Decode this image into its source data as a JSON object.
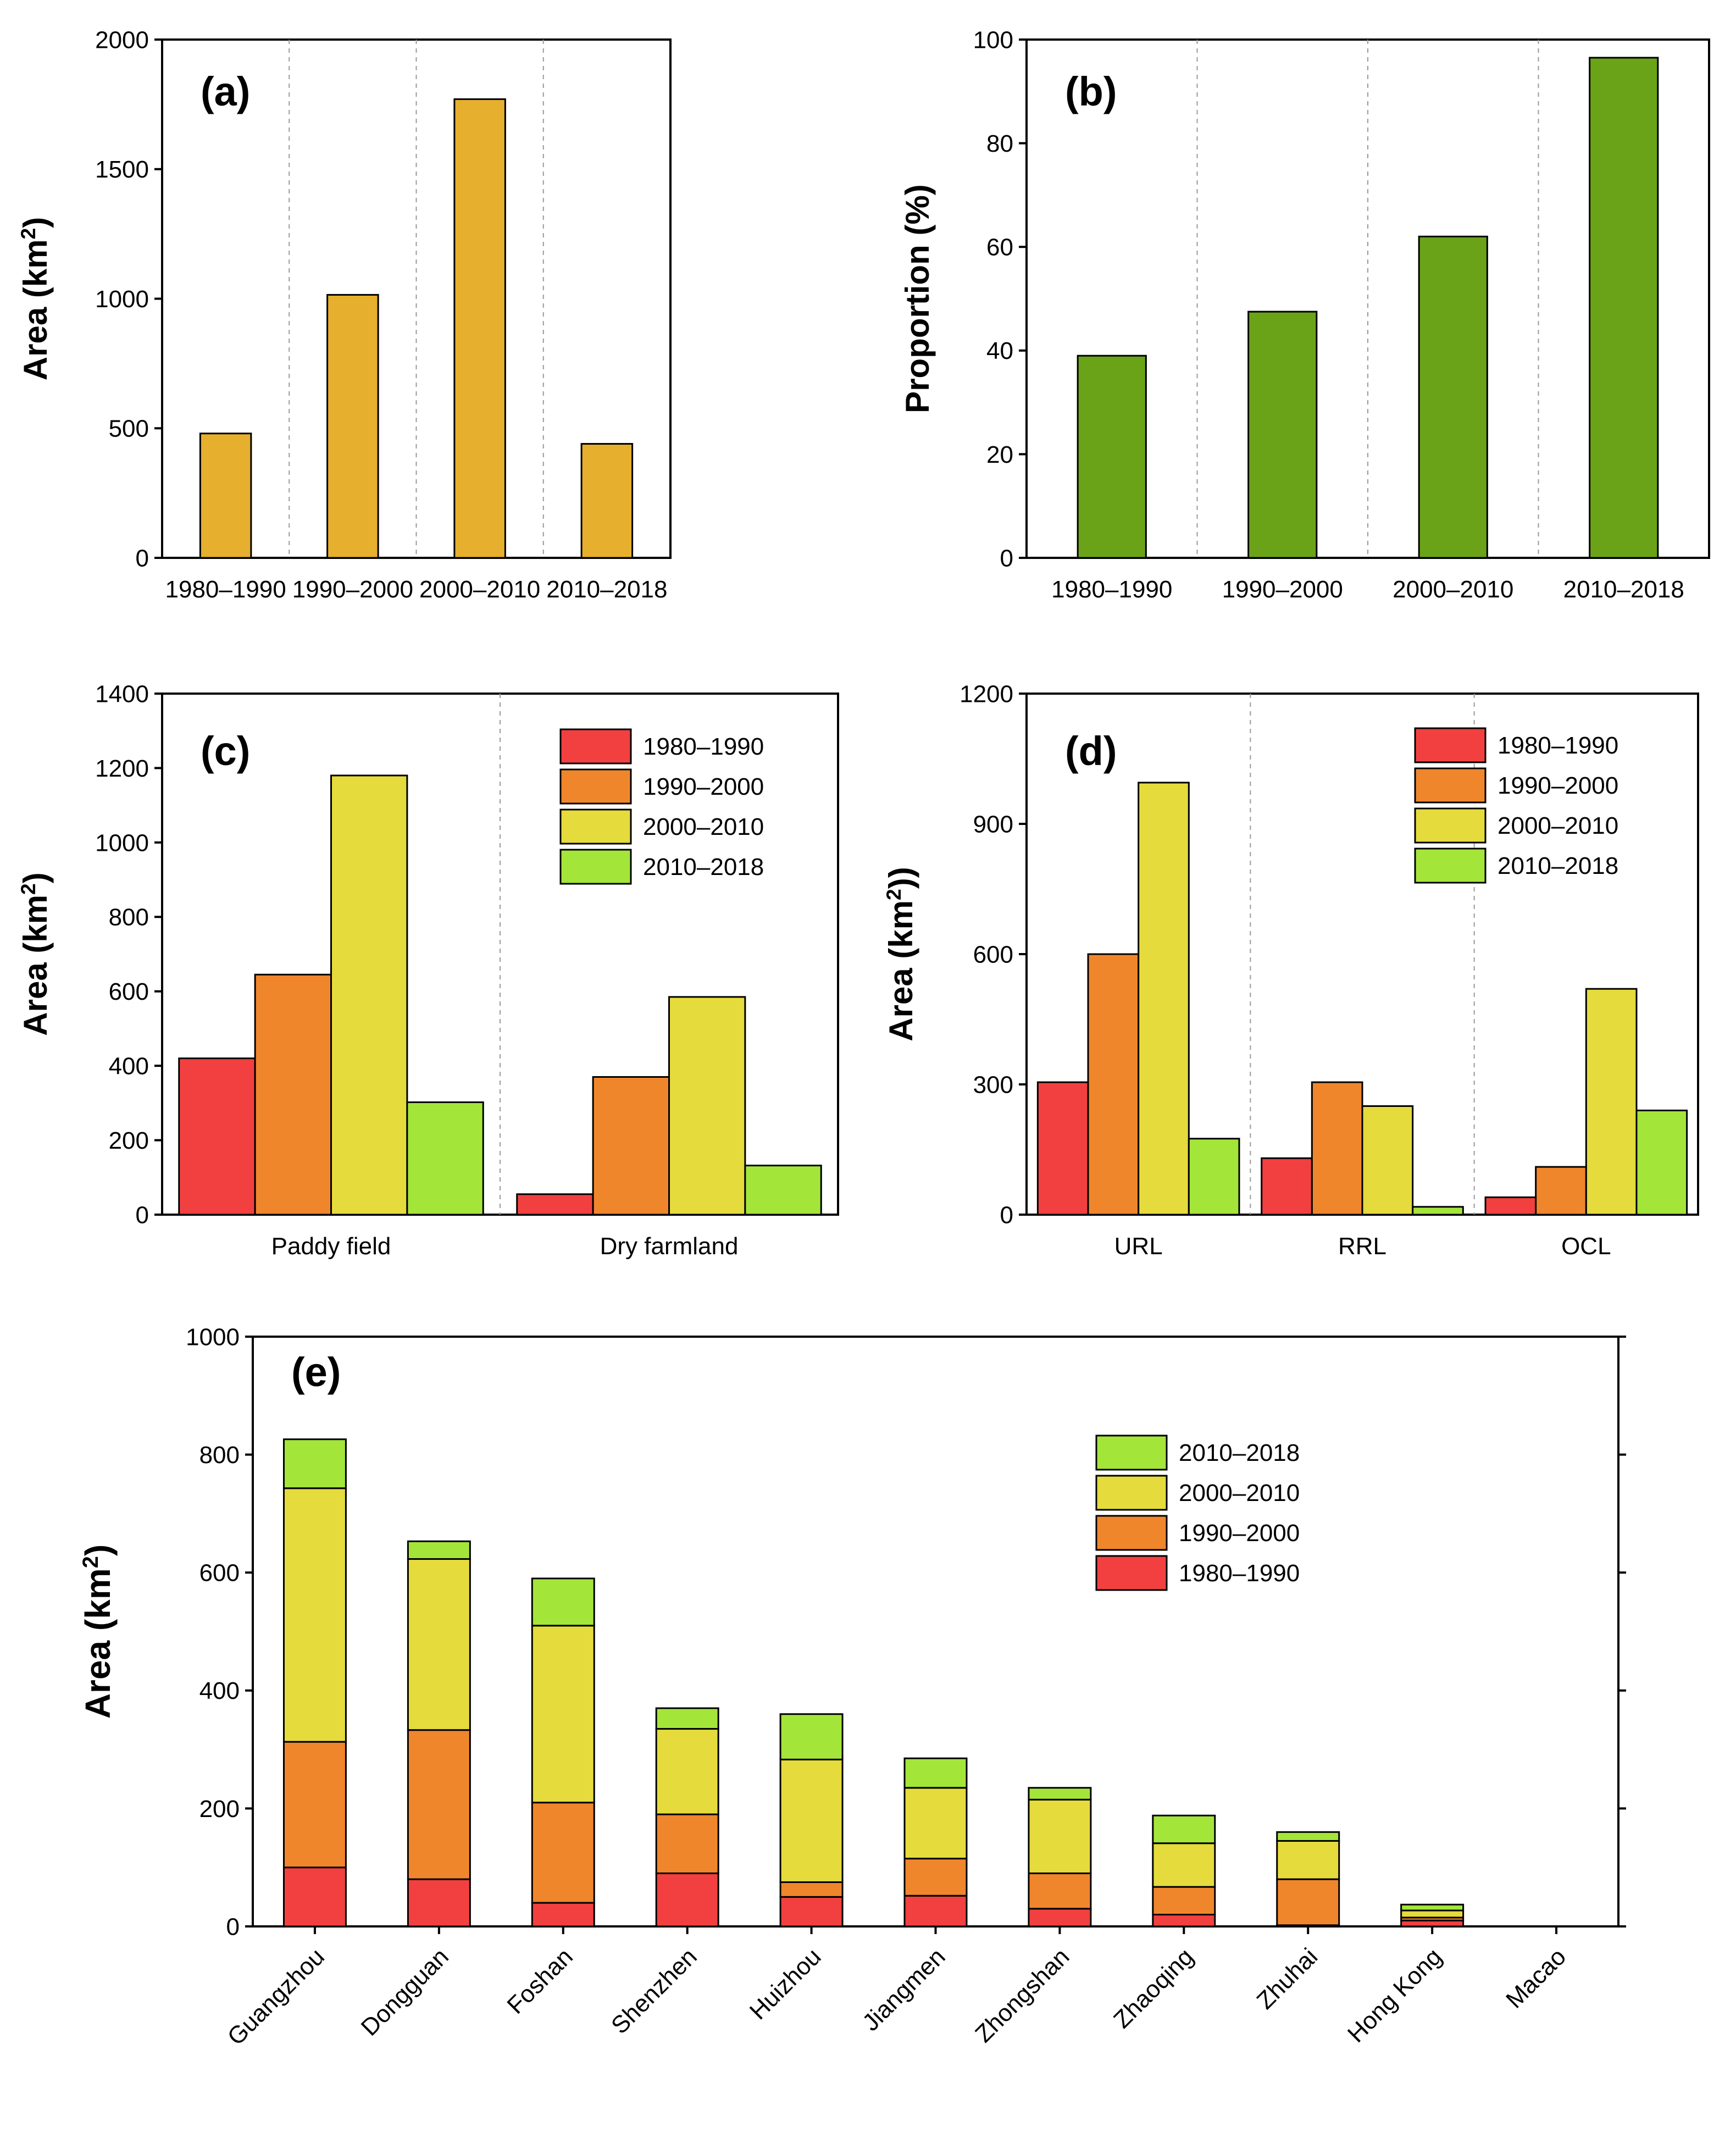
{
  "figure": {
    "description": "Five-panel bar chart figure"
  },
  "chart_data": [
    {
      "id": "a",
      "panel_label": "(a)",
      "type": "bar",
      "title": "",
      "xlabel": "",
      "ylabel": "Area (km²)",
      "ylabel_main": "Area (km",
      "ylabel_sup": "2",
      "ylabel_tail": ")",
      "ylim": [
        0,
        2000
      ],
      "yticks": [
        0,
        500,
        1000,
        1500,
        2000
      ],
      "grid": "vertical dashed separators between categories",
      "categories": [
        "1980–1990",
        "1990–2000",
        "2000–2010",
        "2010–2018"
      ],
      "values": [
        480,
        1015,
        1770,
        440
      ],
      "color": "#E6AF2E"
    },
    {
      "id": "b",
      "panel_label": "(b)",
      "type": "bar",
      "title": "",
      "xlabel": "",
      "ylabel": "Proportion (%)",
      "ylim": [
        0,
        100
      ],
      "yticks": [
        0,
        20,
        40,
        60,
        80,
        100
      ],
      "grid": "vertical dashed separators between categories",
      "categories": [
        "1980–1990",
        "1990–2000",
        "2000–2010",
        "2010–2018"
      ],
      "values": [
        39,
        47.5,
        62,
        96.5
      ],
      "color": "#6AA318"
    },
    {
      "id": "c",
      "panel_label": "(c)",
      "type": "bar",
      "title": "",
      "xlabel": "",
      "ylabel": "Area (km²)",
      "ylabel_main": "Area (km",
      "ylabel_sup": "2",
      "ylabel_tail": ")",
      "ylim": [
        0,
        1400
      ],
      "yticks": [
        0,
        200,
        400,
        600,
        800,
        1000,
        1200,
        1400
      ],
      "legend_position": "top-right",
      "categories": [
        "Paddy field",
        "Dry farmland"
      ],
      "series": [
        {
          "name": "1980–1990",
          "values": [
            420,
            55
          ],
          "color": "#F24040"
        },
        {
          "name": "1990–2000",
          "values": [
            645,
            370
          ],
          "color": "#F0862C"
        },
        {
          "name": "2000–2010",
          "values": [
            1180,
            585
          ],
          "color": "#E5DB3C"
        },
        {
          "name": "2010–2018",
          "values": [
            302,
            132
          ],
          "color": "#A4E53A"
        }
      ]
    },
    {
      "id": "d",
      "panel_label": "(d)",
      "type": "bar",
      "title": "",
      "xlabel": "",
      "ylabel": "Area (km²))",
      "ylabel_main": "Area (km",
      "ylabel_sup": "2",
      "ylabel_tail": "))",
      "ylim": [
        0,
        1200
      ],
      "yticks": [
        0,
        300,
        600,
        900,
        1200
      ],
      "legend_position": "top-right",
      "categories": [
        "URL",
        "RRL",
        "OCL"
      ],
      "series": [
        {
          "name": "1980–1990",
          "values": [
            305,
            130,
            40
          ],
          "color": "#F24040"
        },
        {
          "name": "1990–2000",
          "values": [
            600,
            305,
            110
          ],
          "color": "#F0862C"
        },
        {
          "name": "2000–2010",
          "values": [
            995,
            250,
            520
          ],
          "color": "#E5DB3C"
        },
        {
          "name": "2010–2018",
          "values": [
            175,
            18,
            240
          ],
          "color": "#A4E53A"
        }
      ]
    },
    {
      "id": "e",
      "panel_label": "(e)",
      "type": "bar",
      "stacked": true,
      "title": "",
      "xlabel": "",
      "ylabel": "Area (km²)",
      "ylabel_main": "Area (km",
      "ylabel_sup": "2",
      "ylabel_tail": ")",
      "ylim": [
        0,
        1000
      ],
      "yticks": [
        0,
        200,
        400,
        600,
        800,
        1000
      ],
      "legend_position": "top-right",
      "categories": [
        "Guangzhou",
        "Dongguan",
        "Foshan",
        "Shenzhen",
        "Huizhou",
        "Jiangmen",
        "Zhongshan",
        "Zhaoqing",
        "Zhuhai",
        "Hong Kong",
        "Macao"
      ],
      "series": [
        {
          "name": "1980–1990",
          "values": [
            100,
            80,
            40,
            90,
            50,
            52,
            30,
            20,
            2,
            10,
            0
          ],
          "color": "#F24040"
        },
        {
          "name": "1990–2000",
          "values": [
            213,
            253,
            170,
            100,
            25,
            63,
            60,
            47,
            78,
            5,
            0
          ],
          "color": "#F0862C"
        },
        {
          "name": "2000–2010",
          "values": [
            430,
            290,
            300,
            145,
            208,
            120,
            125,
            74,
            65,
            12,
            0
          ],
          "color": "#E5DB3C"
        },
        {
          "name": "2010–2018",
          "values": [
            83,
            30,
            80,
            35,
            77,
            50,
            20,
            47,
            15,
            10,
            0
          ],
          "color": "#A4E53A"
        }
      ],
      "legend_order": [
        "2010–2018",
        "2000–2010",
        "1990–2000",
        "1980–1990"
      ]
    }
  ]
}
